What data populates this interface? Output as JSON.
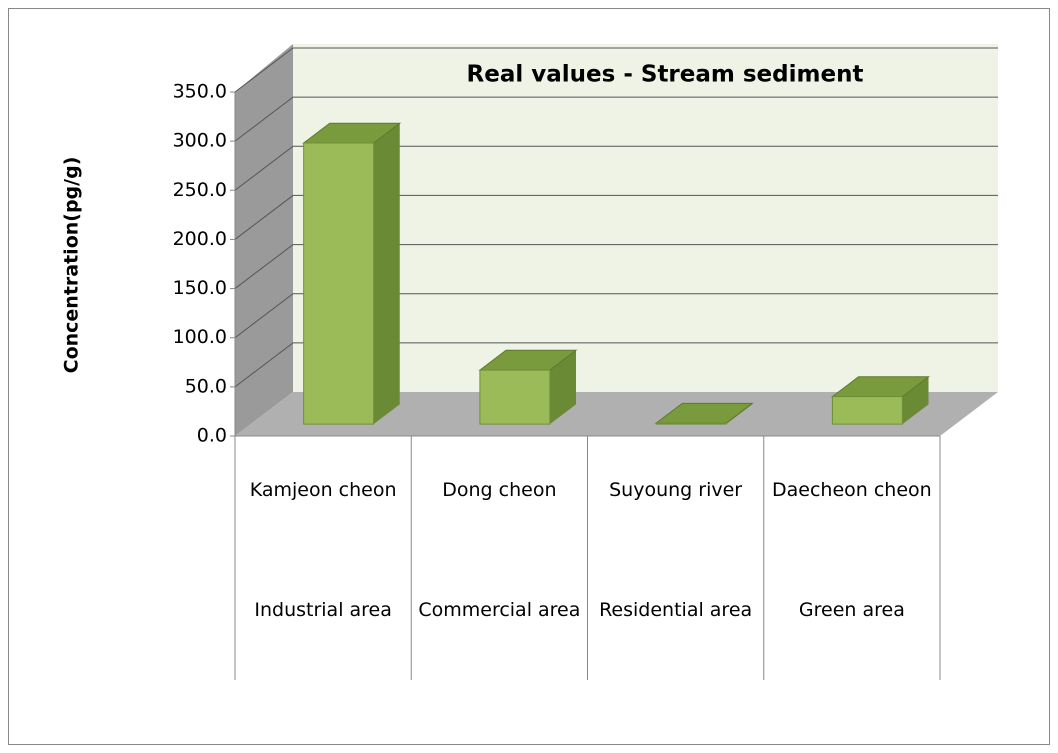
{
  "chart_data": {
    "type": "bar3d",
    "title": "Real values - Stream sediment",
    "y_label": "Concentration(pg/g)",
    "categories": [
      "Kamjeon cheon",
      "Dong cheon",
      "Suyoung river",
      "Daecheon cheon"
    ],
    "subcategories": [
      "Industrial area",
      "Commercial area",
      "Residential area",
      "Green area"
    ],
    "values": [
      286,
      55,
      1,
      28
    ],
    "color": "#9bbb59",
    "ylim": [
      0,
      350
    ],
    "yticks": [
      {
        "value": 0,
        "label": "0.0"
      },
      {
        "value": 50,
        "label": "50.0"
      },
      {
        "value": 100,
        "label": "100.0"
      },
      {
        "value": 150,
        "label": "150.0"
      },
      {
        "value": 200,
        "label": "200.0"
      },
      {
        "value": 250,
        "label": "250.0"
      },
      {
        "value": 300,
        "label": "300.0"
      },
      {
        "value": 350,
        "label": "350.0"
      }
    ],
    "grid": true
  }
}
